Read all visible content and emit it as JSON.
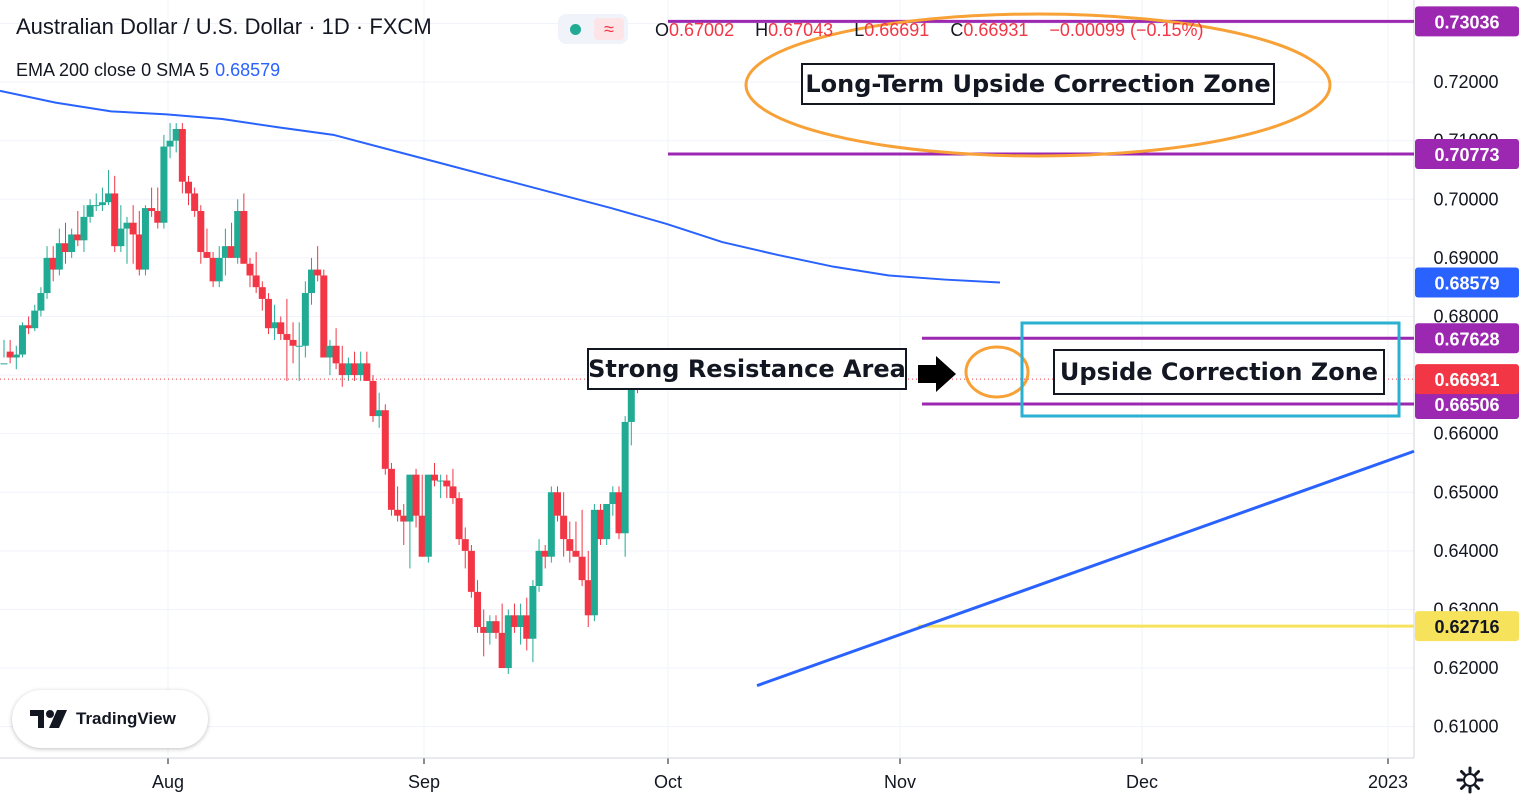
{
  "header": {
    "title": "Australian Dollar / U.S. Dollar · 1D · FXCM",
    "indicator": "EMA 200 close 0 SMA 5",
    "indicator_value": "0.68579",
    "ohlc": {
      "o_label": "O",
      "o": "0.67002",
      "h_label": "H",
      "h": "0.67043",
      "l_label": "L",
      "l": "0.66691",
      "c_label": "C",
      "c": "0.66931",
      "change": "−0.00099 (−0.15%)"
    },
    "status_icon": "wave-icon"
  },
  "chart_data": {
    "type": "candlestick",
    "symbol": "AUDUSD",
    "timeframe": "1D",
    "x_labels": [
      "Aug",
      "Sep",
      "Oct",
      "Nov",
      "Dec",
      "2023"
    ],
    "y_ticks": [
      0.61,
      0.62,
      0.63,
      0.64,
      0.65,
      0.66,
      0.67,
      0.68,
      0.69,
      0.7,
      0.71,
      0.72,
      0.73
    ],
    "ylim": [
      0.6055,
      0.7335
    ],
    "candles": [
      [
        0.672,
        0.676,
        0.673,
        0.672
      ],
      [
        0.674,
        0.676,
        0.672,
        0.673
      ],
      [
        0.673,
        0.675,
        0.671,
        0.6735
      ],
      [
        0.6735,
        0.679,
        0.673,
        0.6785
      ],
      [
        0.6785,
        0.68,
        0.677,
        0.678
      ],
      [
        0.678,
        0.682,
        0.6775,
        0.681
      ],
      [
        0.681,
        0.685,
        0.68,
        0.684
      ],
      [
        0.684,
        0.692,
        0.683,
        0.69
      ],
      [
        0.69,
        0.692,
        0.686,
        0.688
      ],
      [
        0.688,
        0.695,
        0.687,
        0.6925
      ],
      [
        0.6925,
        0.696,
        0.689,
        0.691
      ],
      [
        0.691,
        0.695,
        0.69,
        0.694
      ],
      [
        0.694,
        0.698,
        0.692,
        0.693
      ],
      [
        0.693,
        0.699,
        0.691,
        0.697
      ],
      [
        0.697,
        0.7,
        0.696,
        0.699
      ],
      [
        0.699,
        0.701,
        0.698,
        0.699
      ],
      [
        0.699,
        0.702,
        0.698,
        0.6995
      ],
      [
        0.6995,
        0.705,
        0.699,
        0.701
      ],
      [
        0.701,
        0.704,
        0.691,
        0.692
      ],
      [
        0.692,
        0.699,
        0.691,
        0.695
      ],
      [
        0.695,
        0.697,
        0.689,
        0.696
      ],
      [
        0.696,
        0.699,
        0.689,
        0.694
      ],
      [
        0.694,
        0.698,
        0.687,
        0.688
      ],
      [
        0.688,
        0.699,
        0.687,
        0.6985
      ],
      [
        0.6985,
        0.702,
        0.697,
        0.698
      ],
      [
        0.698,
        0.702,
        0.695,
        0.696
      ],
      [
        0.696,
        0.711,
        0.695,
        0.709
      ],
      [
        0.709,
        0.713,
        0.707,
        0.71
      ],
      [
        0.71,
        0.713,
        0.708,
        0.712
      ],
      [
        0.712,
        0.713,
        0.701,
        0.703
      ],
      [
        0.703,
        0.704,
        0.699,
        0.701
      ],
      [
        0.701,
        0.702,
        0.697,
        0.698
      ],
      [
        0.698,
        0.699,
        0.689,
        0.691
      ],
      [
        0.691,
        0.695,
        0.69,
        0.69
      ],
      [
        0.69,
        0.691,
        0.685,
        0.686
      ],
      [
        0.686,
        0.692,
        0.685,
        0.69
      ],
      [
        0.69,
        0.695,
        0.687,
        0.692
      ],
      [
        0.692,
        0.696,
        0.69,
        0.69
      ],
      [
        0.69,
        0.7,
        0.689,
        0.698
      ],
      [
        0.698,
        0.701,
        0.689,
        0.689
      ],
      [
        0.689,
        0.69,
        0.685,
        0.687
      ],
      [
        0.687,
        0.691,
        0.684,
        0.685
      ],
      [
        0.685,
        0.686,
        0.681,
        0.683
      ],
      [
        0.683,
        0.684,
        0.677,
        0.678
      ],
      [
        0.678,
        0.682,
        0.676,
        0.679
      ],
      [
        0.679,
        0.68,
        0.676,
        0.677
      ],
      [
        0.677,
        0.683,
        0.669,
        0.676
      ],
      [
        0.676,
        0.679,
        0.672,
        0.675
      ],
      [
        0.675,
        0.679,
        0.669,
        0.675
      ],
      [
        0.675,
        0.686,
        0.673,
        0.684
      ],
      [
        0.684,
        0.69,
        0.682,
        0.688
      ],
      [
        0.688,
        0.692,
        0.686,
        0.687
      ],
      [
        0.687,
        0.688,
        0.673,
        0.673
      ],
      [
        0.673,
        0.676,
        0.67,
        0.675
      ],
      [
        0.675,
        0.678,
        0.671,
        0.672
      ],
      [
        0.672,
        0.675,
        0.668,
        0.67
      ],
      [
        0.67,
        0.673,
        0.669,
        0.672
      ],
      [
        0.672,
        0.674,
        0.669,
        0.67
      ],
      [
        0.67,
        0.674,
        0.669,
        0.672
      ],
      [
        0.672,
        0.674,
        0.669,
        0.669
      ],
      [
        0.669,
        0.67,
        0.662,
        0.663
      ],
      [
        0.663,
        0.667,
        0.661,
        0.664
      ],
      [
        0.664,
        0.665,
        0.653,
        0.654
      ],
      [
        0.654,
        0.655,
        0.646,
        0.647
      ],
      [
        0.647,
        0.651,
        0.645,
        0.646
      ],
      [
        0.646,
        0.648,
        0.641,
        0.645
      ],
      [
        0.645,
        0.653,
        0.637,
        0.653
      ],
      [
        0.653,
        0.654,
        0.644,
        0.646
      ],
      [
        0.646,
        0.653,
        0.639,
        0.639
      ],
      [
        0.639,
        0.653,
        0.638,
        0.653
      ],
      [
        0.653,
        0.655,
        0.651,
        0.652
      ],
      [
        0.652,
        0.653,
        0.649,
        0.652
      ],
      [
        0.652,
        0.653,
        0.649,
        0.651
      ],
      [
        0.651,
        0.654,
        0.648,
        0.649
      ],
      [
        0.649,
        0.65,
        0.641,
        0.642
      ],
      [
        0.642,
        0.644,
        0.637,
        0.64
      ],
      [
        0.64,
        0.641,
        0.632,
        0.633
      ],
      [
        0.633,
        0.635,
        0.626,
        0.627
      ],
      [
        0.627,
        0.63,
        0.622,
        0.626
      ],
      [
        0.626,
        0.629,
        0.624,
        0.628
      ],
      [
        0.628,
        0.629,
        0.625,
        0.626
      ],
      [
        0.626,
        0.631,
        0.62,
        0.62
      ],
      [
        0.62,
        0.63,
        0.619,
        0.629
      ],
      [
        0.629,
        0.631,
        0.626,
        0.627
      ],
      [
        0.627,
        0.631,
        0.624,
        0.629
      ],
      [
        0.629,
        0.632,
        0.623,
        0.625
      ],
      [
        0.625,
        0.635,
        0.621,
        0.634
      ],
      [
        0.634,
        0.642,
        0.633,
        0.64
      ],
      [
        0.64,
        0.641,
        0.637,
        0.639
      ],
      [
        0.639,
        0.651,
        0.638,
        0.65
      ],
      [
        0.65,
        0.651,
        0.645,
        0.646
      ],
      [
        0.646,
        0.65,
        0.639,
        0.642
      ],
      [
        0.642,
        0.645,
        0.638,
        0.64
      ],
      [
        0.64,
        0.645,
        0.639,
        0.639
      ],
      [
        0.639,
        0.647,
        0.634,
        0.635
      ],
      [
        0.635,
        0.64,
        0.627,
        0.629
      ],
      [
        0.629,
        0.648,
        0.628,
        0.647
      ],
      [
        0.647,
        0.648,
        0.641,
        0.642
      ],
      [
        0.642,
        0.648,
        0.641,
        0.648
      ],
      [
        0.648,
        0.651,
        0.646,
        0.65
      ],
      [
        0.65,
        0.651,
        0.642,
        0.643
      ],
      [
        0.643,
        0.663,
        0.639,
        0.662
      ],
      [
        0.662,
        0.669,
        0.658,
        0.669
      ],
      [
        0.67,
        0.6704,
        0.6669,
        0.6693
      ]
    ],
    "ema200": [
      0.7185,
      0.7165,
      0.715,
      0.7145,
      0.7137,
      0.7123,
      0.711,
      0.7085,
      0.706,
      0.7035,
      0.701,
      0.6985,
      0.6958,
      0.6927,
      0.6905,
      0.6885,
      0.687,
      0.6863,
      0.6858
    ],
    "levels": [
      {
        "label": "0.73036",
        "value": 0.73036,
        "color": "#9c27b0"
      },
      {
        "label": "0.70773",
        "value": 0.70773,
        "color": "#9c27b0"
      },
      {
        "label": "0.67628",
        "value": 0.67628,
        "color": "#9c27b0"
      },
      {
        "label": "0.66506",
        "value": 0.66506,
        "color": "#9c27b0"
      },
      {
        "label": "0.62716",
        "value": 0.62716,
        "color": "#f7e35b"
      }
    ],
    "price_badges": [
      {
        "label": "0.68579",
        "value": 0.68579,
        "color": "#2962ff"
      },
      {
        "label": "0.66931",
        "value": 0.66931,
        "color": "#f23645"
      }
    ],
    "trendline": [
      0.617,
      0.657
    ],
    "annotations": [
      {
        "text": "Long-Term Upside Correction Zone"
      },
      {
        "text": "Strong Resistance Area"
      },
      {
        "text": "Upside Correction Zone"
      }
    ],
    "colors": {
      "up": "#22ab94",
      "down": "#f23645",
      "ema": "#2962ff",
      "purple": "#9c27b0",
      "yellow": "#f7e35b",
      "orange": "#f7a136",
      "cyan": "#2ab0d0"
    }
  },
  "watermark": "TradingView",
  "settings_icon": "gear-icon"
}
